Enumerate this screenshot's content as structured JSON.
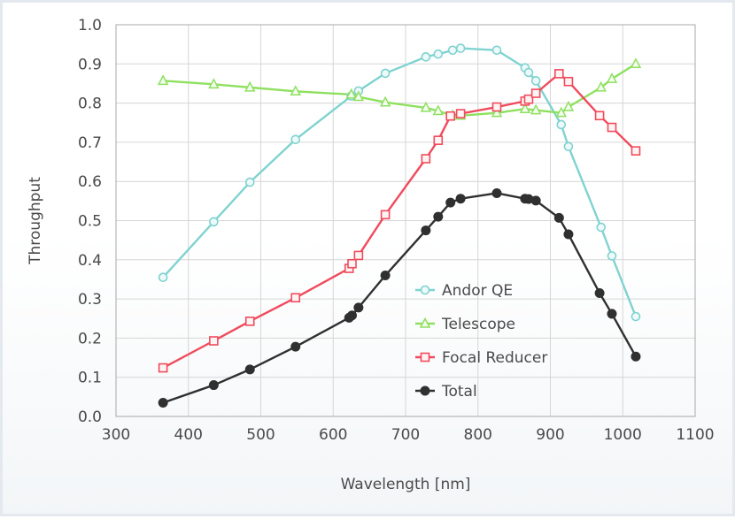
{
  "chart_data": {
    "type": "line",
    "title": "",
    "xlabel": "Wavelength [nm]",
    "ylabel": "Throughput",
    "xlim": [
      300,
      1100
    ],
    "ylim": [
      0.0,
      1.0
    ],
    "x_ticks": [
      "300",
      "400",
      "500",
      "600",
      "700",
      "800",
      "900",
      "1000",
      "1100"
    ],
    "y_ticks": [
      "0.0",
      "0.1",
      "0.2",
      "0.3",
      "0.4",
      "0.5",
      "0.6",
      "0.7",
      "0.8",
      "0.9",
      "1.0"
    ],
    "grid": true,
    "legend_position": "center-right",
    "series": [
      {
        "name": "Andor QE",
        "color": "#7fd3d0",
        "marker": "circle-open",
        "x": [
          365,
          435,
          485,
          548,
          625,
          635,
          672,
          728,
          745,
          765,
          776,
          826,
          865,
          870,
          880,
          915,
          925,
          970,
          985,
          1018
        ],
        "y": [
          0.355,
          0.497,
          0.598,
          0.707,
          0.818,
          0.831,
          0.876,
          0.918,
          0.925,
          0.935,
          0.94,
          0.935,
          0.89,
          0.878,
          0.857,
          0.745,
          0.689,
          0.483,
          0.41,
          0.255
        ]
      },
      {
        "name": "Telescope",
        "color": "#8fe060",
        "marker": "triangle-open",
        "x": [
          365,
          435,
          485,
          548,
          625,
          635,
          672,
          728,
          745,
          765,
          776,
          826,
          865,
          880,
          915,
          925,
          970,
          985,
          1018
        ],
        "y": [
          0.857,
          0.848,
          0.84,
          0.83,
          0.822,
          0.816,
          0.802,
          0.788,
          0.78,
          0.768,
          0.768,
          0.775,
          0.785,
          0.782,
          0.775,
          0.79,
          0.84,
          0.862,
          0.9
        ]
      },
      {
        "name": "Focal Reducer",
        "color": "#f04b5d",
        "marker": "square-open",
        "x": [
          365,
          435,
          485,
          548,
          622,
          626,
          635,
          672,
          728,
          745,
          762,
          776,
          826,
          865,
          870,
          880,
          912,
          925,
          968,
          985,
          1018
        ],
        "y": [
          0.124,
          0.193,
          0.243,
          0.303,
          0.378,
          0.39,
          0.411,
          0.515,
          0.658,
          0.705,
          0.767,
          0.773,
          0.79,
          0.805,
          0.81,
          0.825,
          0.875,
          0.855,
          0.768,
          0.738,
          0.678
        ]
      },
      {
        "name": "Total",
        "color": "#303030",
        "marker": "circle-filled",
        "x": [
          365,
          435,
          485,
          548,
          622,
          626,
          635,
          672,
          728,
          745,
          762,
          776,
          826,
          865,
          870,
          880,
          912,
          925,
          968,
          985,
          1018
        ],
        "y": [
          0.035,
          0.08,
          0.12,
          0.178,
          0.252,
          0.258,
          0.278,
          0.36,
          0.475,
          0.51,
          0.546,
          0.556,
          0.57,
          0.556,
          0.555,
          0.551,
          0.507,
          0.465,
          0.315,
          0.262,
          0.153
        ]
      }
    ]
  }
}
